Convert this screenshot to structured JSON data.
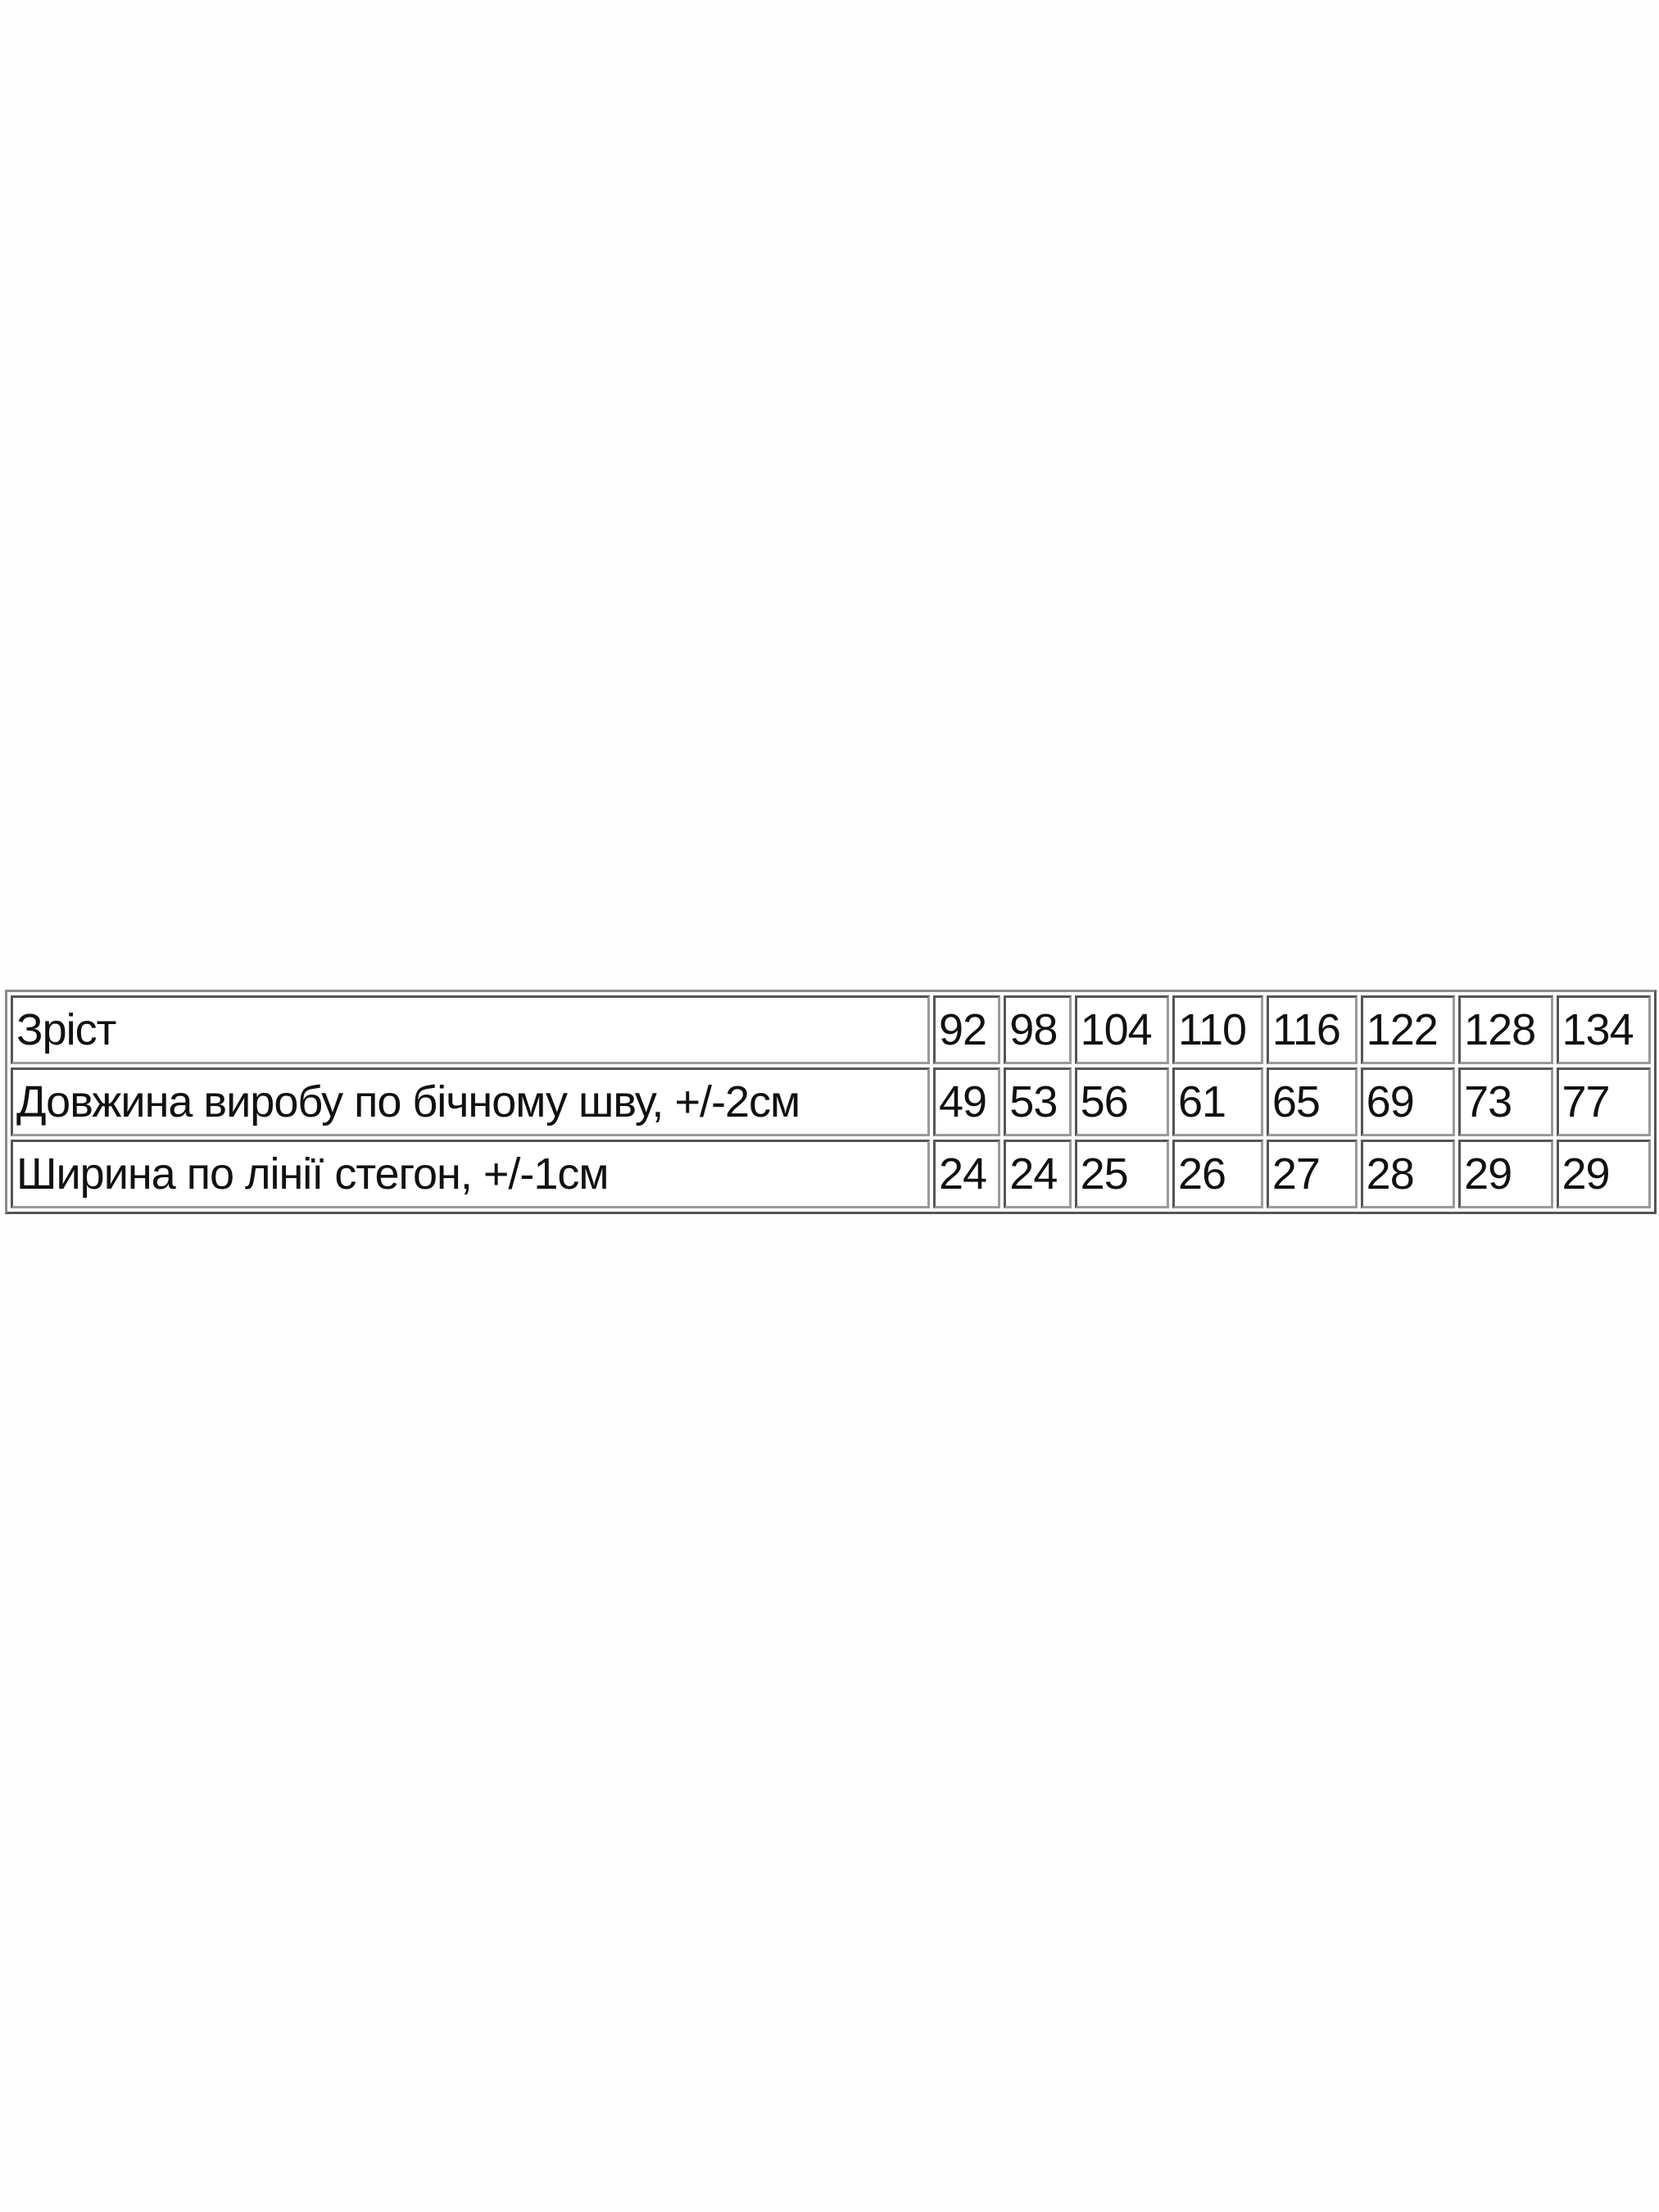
{
  "table": {
    "rows": [
      {
        "label": "Зріст",
        "values": [
          "92",
          "98",
          "104",
          "110",
          "116",
          "122",
          "128",
          "134"
        ]
      },
      {
        "label": "Довжина виробу по бічному шву, +/-2см",
        "values": [
          "49",
          "53",
          "56",
          "61",
          "65",
          "69",
          "73",
          "77"
        ]
      },
      {
        "label": "Ширина по лінії стегон, +/-1см",
        "values": [
          "24",
          "24",
          "25",
          "26",
          "27",
          "28",
          "29",
          "29"
        ]
      }
    ]
  }
}
